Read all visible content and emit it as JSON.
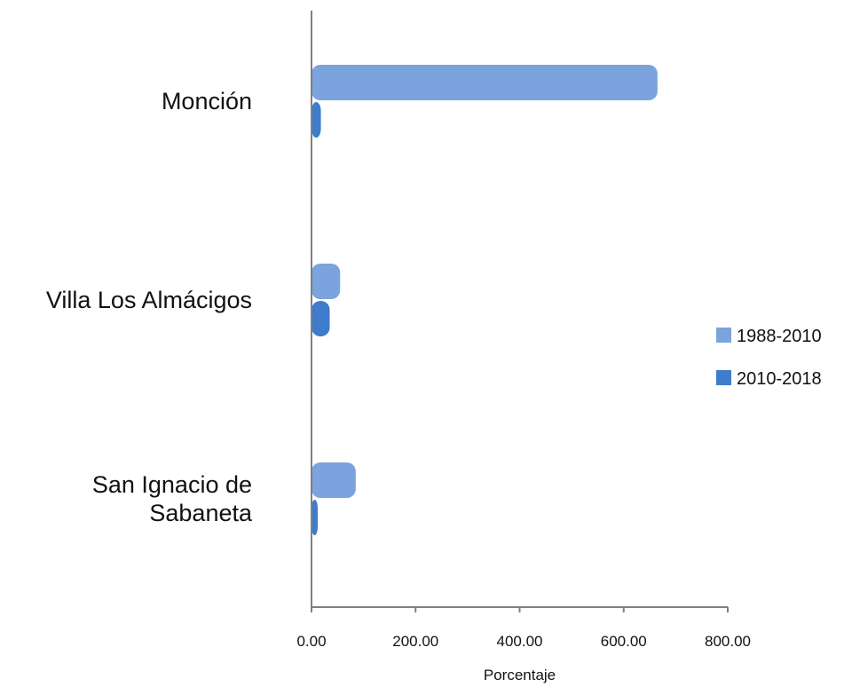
{
  "chart_data": {
    "type": "bar",
    "orientation": "horizontal",
    "categories": [
      "Monción",
      "Villa Los Almácigos",
      "San Ignacio de Sabaneta"
    ],
    "category_lines": [
      [
        "Monción"
      ],
      [
        "Villa Los Almácigos"
      ],
      [
        "San Ignacio de",
        "Sabaneta"
      ]
    ],
    "series": [
      {
        "name": "1988-2010",
        "values": [
          665,
          55,
          85
        ],
        "color": "#7BA3DD"
      },
      {
        "name": "2010-2018",
        "values": [
          18,
          35,
          12
        ],
        "color": "#3F7CCB"
      }
    ],
    "x_ticks": [
      "0.00",
      "200.00",
      "400.00",
      "600.00",
      "800.00"
    ],
    "xlim": [
      0,
      800
    ],
    "xlabel": "Porcentaje",
    "ylabel": "",
    "title": "",
    "legend_position": "right",
    "grid": false
  }
}
